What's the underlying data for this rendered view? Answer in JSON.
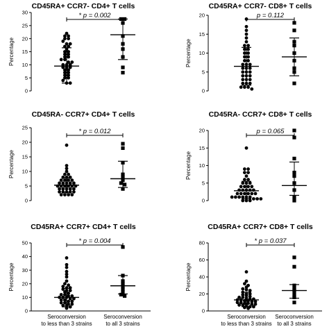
{
  "figure": {
    "background": "#ffffff",
    "marker_color": "#000000"
  },
  "chart_data": [
    {
      "type": "scatter",
      "title": "CD45RA+ CCR7- CD4+ T cells",
      "ylabel": "Percentage",
      "ylim": [
        0,
        30
      ],
      "yticks": [
        0,
        5,
        10,
        15,
        20,
        25,
        30
      ],
      "pvalue": "* p = 0.002",
      "categories": [
        "Seroconversion to less than 3 strains",
        "Seroconversion to all 3 strains"
      ],
      "series": [
        {
          "marker": "circle",
          "values": [
            22,
            21,
            21,
            20,
            20,
            19,
            18,
            18,
            17,
            17,
            16,
            15,
            15,
            14,
            14,
            13,
            13,
            12,
            12,
            11,
            11,
            10,
            10,
            10,
            9,
            9,
            9,
            8,
            8,
            7,
            7,
            6,
            6,
            5,
            5,
            4,
            3,
            3
          ],
          "mean": 9.5,
          "sd_low": 3,
          "sd_high": 16.5
        },
        {
          "marker": "square",
          "values": [
            27.5,
            27.5,
            26,
            21,
            18,
            16,
            13,
            9,
            7
          ],
          "mean": 21.5,
          "sd_low": 12,
          "sd_high": 27.5
        }
      ]
    },
    {
      "type": "scatter",
      "title": "CD45RA+ CCR7- CD8+ T cells",
      "ylabel": "Percentage",
      "ylim": [
        0,
        20
      ],
      "yticks": [
        0,
        5,
        10,
        15,
        20
      ],
      "pvalue": "p = 0.112",
      "categories": [
        "Seroconversion to less than 3 strains",
        "Seroconversion to all 3 strains"
      ],
      "series": [
        {
          "marker": "circle",
          "values": [
            19,
            17,
            16,
            15,
            14,
            13,
            12,
            12,
            11,
            11,
            10,
            10,
            9,
            9,
            8,
            8,
            7,
            7,
            7,
            6,
            6,
            6,
            5,
            5,
            5,
            4,
            4,
            4,
            3,
            3,
            3,
            2,
            2,
            2,
            1,
            1,
            1,
            0.5
          ],
          "mean": 6.5,
          "sd_low": 1.5,
          "sd_high": 11.5
        },
        {
          "marker": "square",
          "values": [
            18,
            16,
            13,
            12,
            10,
            8,
            6,
            5,
            2
          ],
          "mean": 9,
          "sd_low": 4,
          "sd_high": 14
        }
      ]
    },
    {
      "type": "scatter",
      "title": "CD45RA- CCR7+ CD4+ T cells",
      "ylabel": "Percentage",
      "ylim": [
        0,
        25
      ],
      "yticks": [
        0,
        5,
        10,
        15,
        20,
        25
      ],
      "pvalue": "* p = 0.012",
      "categories": [
        "Seroconversion to less than 3 strains",
        "Seroconversion to all 3 strains"
      ],
      "series": [
        {
          "marker": "circle",
          "values": [
            19,
            12,
            11,
            10,
            9,
            9,
            8,
            8,
            8,
            7,
            7,
            7,
            7,
            6,
            6,
            6,
            6,
            6,
            5,
            5,
            5,
            5,
            5,
            5,
            4,
            4,
            4,
            4,
            4,
            3,
            3,
            3,
            3,
            3,
            2,
            2,
            2,
            2
          ],
          "mean": 5.3,
          "sd_low": 2.8,
          "sd_high": 7.8
        },
        {
          "marker": "square",
          "values": [
            19.5,
            18,
            13,
            9,
            8,
            7,
            6,
            5.5,
            4
          ],
          "mean": 7.5,
          "sd_low": 4.5,
          "sd_high": 13.5
        }
      ]
    },
    {
      "type": "scatter",
      "title": "CD45RA- CCR7+ CD8+ T cells",
      "ylabel": "Percentage",
      "ylim": [
        0,
        20
      ],
      "yticks": [
        0,
        5,
        10,
        15,
        20
      ],
      "pvalue": "p = 0.065",
      "categories": [
        "Seroconversion to less than 3 strains",
        "Seroconversion to all 3 strains"
      ],
      "series": [
        {
          "marker": "circle",
          "values": [
            15,
            9,
            9,
            8,
            8,
            7,
            6,
            6,
            5,
            5,
            5,
            4,
            4,
            4,
            4,
            3,
            3,
            3,
            3,
            3,
            2,
            2,
            2,
            2,
            2,
            2,
            1,
            1,
            1,
            1,
            1,
            1,
            0.5,
            0.5,
            0.5,
            0,
            0,
            0
          ],
          "mean": 2.8,
          "sd_low": 0.5,
          "sd_high": 5.5
        },
        {
          "marker": "square",
          "values": [
            20,
            18,
            12,
            8,
            7,
            5,
            3,
            1,
            0
          ],
          "mean": 4.3,
          "sd_low": 1.5,
          "sd_high": 11
        }
      ]
    },
    {
      "type": "scatter",
      "title": "CD45RA+ CCR7+ CD4+ T cells",
      "ylabel": "Percentage",
      "ylim": [
        0,
        50
      ],
      "yticks": [
        0,
        10,
        20,
        30,
        40,
        50
      ],
      "pvalue": "* p = 0.004",
      "categories": [
        "Seroconversion to less than 3 strains",
        "Seroconversion to all 3 strains"
      ],
      "series": [
        {
          "marker": "circle",
          "values": [
            39,
            34,
            32,
            29,
            27,
            25,
            22,
            20,
            19,
            18,
            17,
            17,
            16,
            15,
            15,
            14,
            13,
            12,
            12,
            11,
            11,
            10,
            10,
            10,
            9,
            9,
            8,
            8,
            7,
            7,
            6,
            6,
            5,
            5,
            4,
            4,
            3,
            2
          ],
          "mean": 10,
          "sd_low": 3,
          "sd_high": 16.5
        },
        {
          "marker": "square",
          "values": [
            47,
            26,
            22,
            20,
            18,
            16,
            14,
            12,
            11
          ],
          "mean": 18.5,
          "sd_low": 12.5,
          "sd_high": 26
        }
      ]
    },
    {
      "type": "scatter",
      "title": "CD45RA+ CCR7+ CD8+ T cells",
      "ylabel": "Percentage",
      "ylim": [
        0,
        80
      ],
      "yticks": [
        0,
        20,
        40,
        60,
        80
      ],
      "pvalue": "* p = 0.037",
      "categories": [
        "Seroconversion to less than 3 strains",
        "Seroconversion to all 3 strains"
      ],
      "series": [
        {
          "marker": "circle",
          "values": [
            46,
            35,
            32,
            30,
            28,
            26,
            25,
            24,
            22,
            20,
            20,
            19,
            18,
            17,
            16,
            16,
            15,
            14,
            14,
            13,
            13,
            12,
            12,
            11,
            11,
            10,
            10,
            9,
            9,
            8,
            8,
            7,
            7,
            6,
            5,
            5,
            4,
            3
          ],
          "mean": 13,
          "sd_low": 5,
          "sd_high": 22
        },
        {
          "marker": "square",
          "values": [
            63,
            52,
            30,
            27,
            25,
            22,
            18,
            16,
            10
          ],
          "mean": 24,
          "sd_low": 15,
          "sd_high": 31
        }
      ]
    }
  ]
}
